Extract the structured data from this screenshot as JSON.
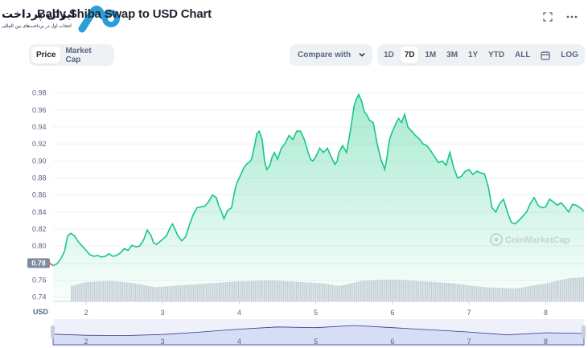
{
  "header": {
    "title": "Baby Shiba Swap to USD Chart",
    "watermark_text": "ایران پرداخت",
    "watermark_sub": "انتخاب اول در پرداخت‌های بین المللی"
  },
  "toolbar": {
    "view_tabs": [
      {
        "label": "Price",
        "active": true
      },
      {
        "label": "Market Cap",
        "active": false
      }
    ],
    "compare_label": "Compare with",
    "ranges": [
      {
        "label": "1D",
        "active": false
      },
      {
        "label": "7D",
        "active": true
      },
      {
        "label": "1M",
        "active": false
      },
      {
        "label": "3M",
        "active": false
      },
      {
        "label": "1Y",
        "active": false
      },
      {
        "label": "YTD",
        "active": false
      },
      {
        "label": "ALL",
        "active": false
      },
      {
        "label": "LOG",
        "active": false
      }
    ]
  },
  "colors": {
    "accent": "#16c784",
    "fill_top": "#16c784",
    "current_badge": "#808a9d",
    "volume": "#c8ccd5",
    "navigator": "#dfe4f5"
  },
  "chart_data": {
    "type": "area",
    "currency_label": "USD",
    "watermark": "CoinMarketCap",
    "current_price_label": "0.78",
    "ylim": [
      0.735,
      0.99
    ],
    "y_ticks": [
      0.74,
      0.76,
      0.78,
      0.8,
      0.82,
      0.84,
      0.86,
      0.88,
      0.9,
      0.92,
      0.94,
      0.96,
      0.98
    ],
    "y_tick_labels": [
      "0.74",
      "0.76",
      "0.78",
      "0.80",
      "0.82",
      "0.84",
      "0.86",
      "0.88",
      "0.90",
      "0.92",
      "0.94",
      "0.96",
      "0.98"
    ],
    "xlim": [
      1.57,
      8.5
    ],
    "x_ticks": [
      2,
      3,
      4,
      5,
      6,
      7,
      8
    ],
    "x_tick_labels": [
      "2",
      "3",
      "4",
      "5",
      "6",
      "7",
      "8"
    ],
    "grid": true,
    "series": [
      {
        "values": [
          [
            1.57,
            0.777
          ],
          [
            1.62,
            0.779
          ],
          [
            1.67,
            0.785
          ],
          [
            1.72,
            0.794
          ],
          [
            1.76,
            0.812
          ],
          [
            1.8,
            0.815
          ],
          [
            1.85,
            0.812
          ],
          [
            1.9,
            0.805
          ],
          [
            1.95,
            0.8
          ],
          [
            2,
            0.795
          ],
          [
            2.05,
            0.79
          ],
          [
            2.1,
            0.788
          ],
          [
            2.15,
            0.789
          ],
          [
            2.2,
            0.787
          ],
          [
            2.25,
            0.788
          ],
          [
            2.3,
            0.791
          ],
          [
            2.35,
            0.788
          ],
          [
            2.4,
            0.789
          ],
          [
            2.45,
            0.792
          ],
          [
            2.5,
            0.797
          ],
          [
            2.55,
            0.795
          ],
          [
            2.6,
            0.801
          ],
          [
            2.65,
            0.799
          ],
          [
            2.7,
            0.8
          ],
          [
            2.75,
            0.807
          ],
          [
            2.8,
            0.819
          ],
          [
            2.85,
            0.812
          ],
          [
            2.88,
            0.804
          ],
          [
            2.92,
            0.802
          ],
          [
            2.96,
            0.805
          ],
          [
            3,
            0.808
          ],
          [
            3.05,
            0.812
          ],
          [
            3.08,
            0.818
          ],
          [
            3.1,
            0.822
          ],
          [
            3.13,
            0.826
          ],
          [
            3.16,
            0.82
          ],
          [
            3.2,
            0.812
          ],
          [
            3.25,
            0.806
          ],
          [
            3.3,
            0.811
          ],
          [
            3.35,
            0.825
          ],
          [
            3.4,
            0.837
          ],
          [
            3.45,
            0.845
          ],
          [
            3.5,
            0.846
          ],
          [
            3.55,
            0.847
          ],
          [
            3.6,
            0.852
          ],
          [
            3.65,
            0.86
          ],
          [
            3.7,
            0.857
          ],
          [
            3.73,
            0.848
          ],
          [
            3.77,
            0.84
          ],
          [
            3.8,
            0.832
          ],
          [
            3.85,
            0.842
          ],
          [
            3.9,
            0.845
          ],
          [
            3.93,
            0.86
          ],
          [
            3.96,
            0.872
          ],
          [
            4,
            0.88
          ],
          [
            4.03,
            0.886
          ],
          [
            4.06,
            0.892
          ],
          [
            4.1,
            0.897
          ],
          [
            4.13,
            0.898
          ],
          [
            4.16,
            0.902
          ],
          [
            4.2,
            0.918
          ],
          [
            4.23,
            0.932
          ],
          [
            4.26,
            0.935
          ],
          [
            4.3,
            0.925
          ],
          [
            4.33,
            0.9
          ],
          [
            4.36,
            0.89
          ],
          [
            4.4,
            0.895
          ],
          [
            4.43,
            0.905
          ],
          [
            4.46,
            0.91
          ],
          [
            4.5,
            0.902
          ],
          [
            4.55,
            0.915
          ],
          [
            4.6,
            0.921
          ],
          [
            4.65,
            0.93
          ],
          [
            4.7,
            0.925
          ],
          [
            4.75,
            0.935
          ],
          [
            4.8,
            0.935
          ],
          [
            4.85,
            0.925
          ],
          [
            4.9,
            0.91
          ],
          [
            4.93,
            0.902
          ],
          [
            4.96,
            0.9
          ],
          [
            5,
            0.905
          ],
          [
            5.05,
            0.915
          ],
          [
            5.1,
            0.91
          ],
          [
            5.15,
            0.915
          ],
          [
            5.2,
            0.905
          ],
          [
            5.25,
            0.896
          ],
          [
            5.28,
            0.9
          ],
          [
            5.3,
            0.91
          ],
          [
            5.35,
            0.918
          ],
          [
            5.4,
            0.91
          ],
          [
            5.45,
            0.935
          ],
          [
            5.5,
            0.965
          ],
          [
            5.53,
            0.973
          ],
          [
            5.56,
            0.978
          ],
          [
            5.6,
            0.97
          ],
          [
            5.63,
            0.958
          ],
          [
            5.66,
            0.955
          ],
          [
            5.7,
            0.948
          ],
          [
            5.75,
            0.945
          ],
          [
            5.8,
            0.92
          ],
          [
            5.85,
            0.902
          ],
          [
            5.9,
            0.89
          ],
          [
            5.93,
            0.905
          ],
          [
            5.96,
            0.925
          ],
          [
            6,
            0.935
          ],
          [
            6.05,
            0.945
          ],
          [
            6.08,
            0.95
          ],
          [
            6.12,
            0.945
          ],
          [
            6.16,
            0.955
          ],
          [
            6.2,
            0.94
          ],
          [
            6.25,
            0.935
          ],
          [
            6.3,
            0.93
          ],
          [
            6.35,
            0.926
          ],
          [
            6.4,
            0.92
          ],
          [
            6.45,
            0.918
          ],
          [
            6.5,
            0.912
          ],
          [
            6.55,
            0.905
          ],
          [
            6.6,
            0.898
          ],
          [
            6.65,
            0.9
          ],
          [
            6.7,
            0.895
          ],
          [
            6.75,
            0.91
          ],
          [
            6.8,
            0.892
          ],
          [
            6.85,
            0.88
          ],
          [
            6.9,
            0.882
          ],
          [
            6.95,
            0.888
          ],
          [
            7,
            0.89
          ],
          [
            7.05,
            0.884
          ],
          [
            7.1,
            0.888
          ],
          [
            7.15,
            0.886
          ],
          [
            7.2,
            0.885
          ],
          [
            7.25,
            0.87
          ],
          [
            7.3,
            0.845
          ],
          [
            7.35,
            0.84
          ],
          [
            7.4,
            0.85
          ],
          [
            7.45,
            0.855
          ],
          [
            7.5,
            0.84
          ],
          [
            7.55,
            0.828
          ],
          [
            7.6,
            0.826
          ],
          [
            7.65,
            0.83
          ],
          [
            7.7,
            0.835
          ],
          [
            7.75,
            0.84
          ],
          [
            7.8,
            0.85
          ],
          [
            7.85,
            0.857
          ],
          [
            7.9,
            0.848
          ],
          [
            7.95,
            0.845
          ],
          [
            8,
            0.846
          ],
          [
            8.05,
            0.855
          ],
          [
            8.1,
            0.852
          ],
          [
            8.15,
            0.848
          ],
          [
            8.2,
            0.851
          ],
          [
            8.25,
            0.846
          ],
          [
            8.3,
            0.84
          ],
          [
            8.35,
            0.849
          ],
          [
            8.4,
            0.848
          ],
          [
            8.45,
            0.845
          ],
          [
            8.5,
            0.841
          ]
        ]
      }
    ],
    "volume": [
      [
        1.6,
        0.35
      ],
      [
        1.8,
        0.6
      ],
      [
        2.0,
        0.75
      ],
      [
        2.3,
        0.8
      ],
      [
        2.6,
        0.72
      ],
      [
        2.9,
        0.55
      ],
      [
        3.2,
        0.62
      ],
      [
        3.6,
        0.7
      ],
      [
        4.0,
        0.78
      ],
      [
        4.4,
        0.82
      ],
      [
        4.8,
        0.75
      ],
      [
        5.1,
        0.7
      ],
      [
        5.3,
        0.6
      ],
      [
        5.6,
        0.8
      ],
      [
        6.0,
        0.85
      ],
      [
        6.4,
        0.78
      ],
      [
        6.8,
        0.7
      ],
      [
        7.2,
        0.55
      ],
      [
        7.6,
        0.5
      ],
      [
        8.0,
        0.7
      ],
      [
        8.3,
        0.9
      ],
      [
        8.5,
        0.95
      ]
    ],
    "navigator": [
      [
        1.57,
        0.4
      ],
      [
        2.0,
        0.32
      ],
      [
        2.5,
        0.3
      ],
      [
        3.0,
        0.38
      ],
      [
        3.5,
        0.55
      ],
      [
        4.0,
        0.75
      ],
      [
        4.5,
        0.9
      ],
      [
        5.0,
        0.85
      ],
      [
        5.5,
        1.0
      ],
      [
        6.0,
        0.85
      ],
      [
        6.5,
        0.7
      ],
      [
        7.0,
        0.55
      ],
      [
        7.5,
        0.35
      ],
      [
        8.0,
        0.5
      ],
      [
        8.5,
        0.45
      ]
    ]
  }
}
